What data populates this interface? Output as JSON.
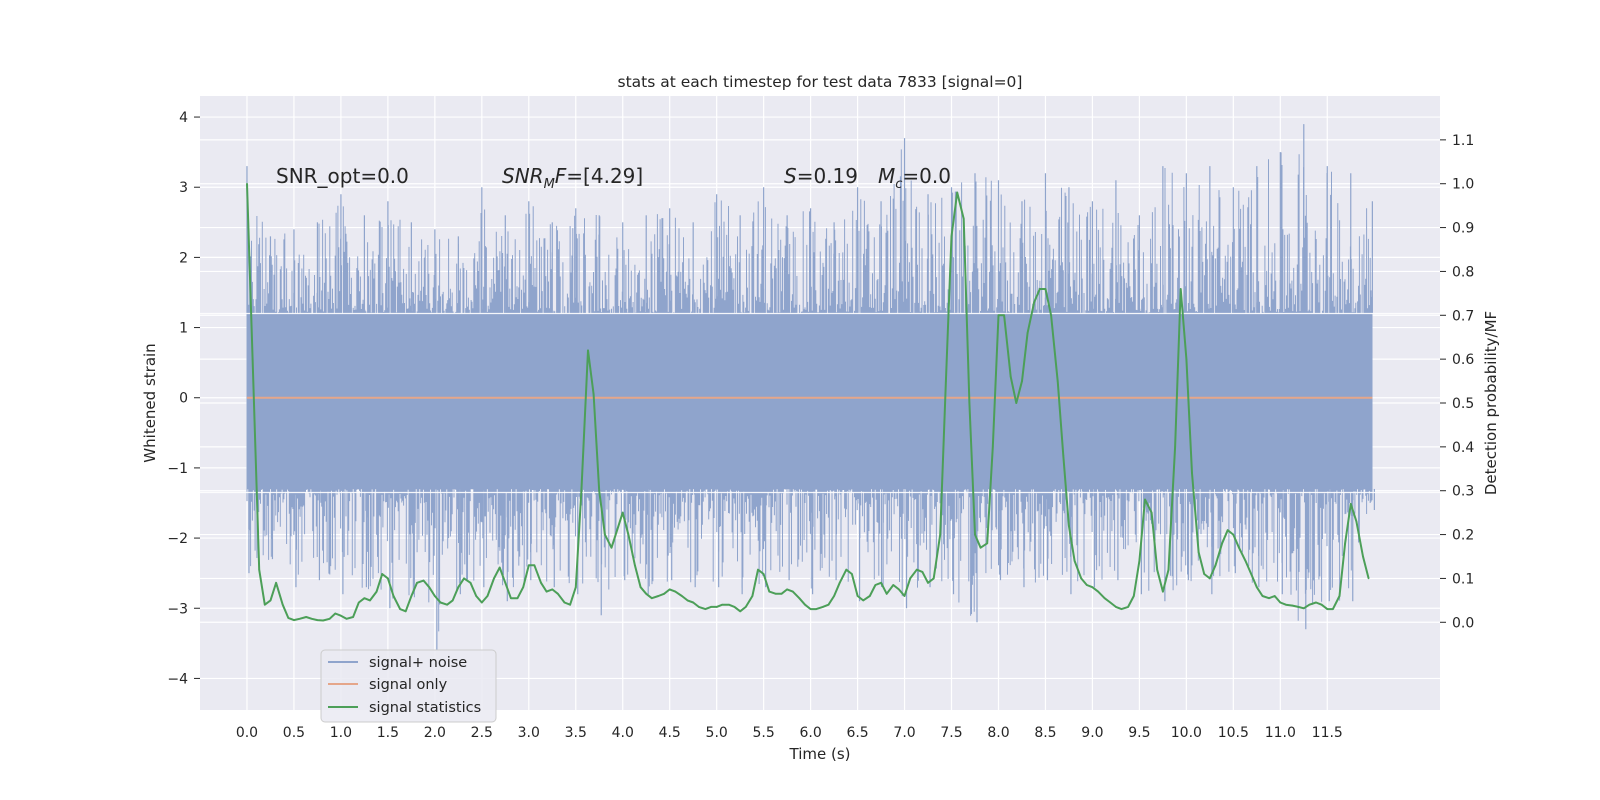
{
  "chart_data": {
    "type": "line",
    "title": "stats at each timestep for test data 7833 [signal=0]",
    "xlabel": "Time (s)",
    "ylabel": "Whitened strain",
    "ylabel_right": "Detection probability/MF",
    "xlim": [
      -0.5,
      12.7
    ],
    "ylim": [
      -4.45,
      4.3
    ],
    "ylim_right": [
      -0.2,
      1.2
    ],
    "x_ticks": [
      0.0,
      0.5,
      1.0,
      1.5,
      2.0,
      2.5,
      3.0,
      3.5,
      4.0,
      4.5,
      5.0,
      5.5,
      6.0,
      6.5,
      7.0,
      7.5,
      8.0,
      8.5,
      9.0,
      9.5,
      10.0,
      10.5,
      11.0,
      11.5
    ],
    "x_tick_labels": [
      "0.0",
      "0.5",
      "1.0",
      "1.5",
      "2.0",
      "2.5",
      "3.0",
      "3.5",
      "4.0",
      "4.5",
      "5.0",
      "5.5",
      "6.0",
      "6.5",
      "7.0",
      "7.5",
      "8.0",
      "8.5",
      "9.0",
      "9.5",
      "10.0",
      "10.5",
      "11.0",
      "11.5"
    ],
    "y_ticks": [
      -4,
      -3,
      -2,
      -1,
      0,
      1,
      2,
      3,
      4
    ],
    "y_tick_labels": [
      "−4",
      "−3",
      "−2",
      "−1",
      "0",
      "1",
      "2",
      "3",
      "4"
    ],
    "y_ticks_right": [
      0.0,
      0.1,
      0.2,
      0.3,
      0.4,
      0.5,
      0.6,
      0.7,
      0.8,
      0.9,
      1.0,
      1.1
    ],
    "y_tick_labels_right": [
      "0.0",
      "0.1",
      "0.2",
      "0.3",
      "0.4",
      "0.5",
      "0.6",
      "0.7",
      "0.8",
      "0.9",
      "1.0",
      "1.1"
    ],
    "grid": true,
    "legend_position": "lower-left",
    "legend": [
      "signal+ noise",
      "signal only",
      "signal statistics"
    ],
    "annotations": {
      "snr_opt": "SNR_opt=0.0",
      "snr_mf_main": "SNR",
      "snr_mf_sub": "M",
      "snr_mf_var": "F",
      "snr_mf_value": "=[4.29]",
      "s_var": "S",
      "s_value": "=0.19",
      "mc_var": "M",
      "mc_sub": "c",
      "mc_value": "=0.0"
    },
    "series": [
      {
        "name": "signal+ noise",
        "axis": "left",
        "color": "#8fa4cc",
        "x_start": 0.0,
        "x_end": 11.98,
        "envelope": {
          "x": [
            0.0,
            0.25,
            0.5,
            0.75,
            1.0,
            1.25,
            1.5,
            1.75,
            2.0,
            2.25,
            2.5,
            2.75,
            3.0,
            3.25,
            3.5,
            3.75,
            4.0,
            4.25,
            4.5,
            4.75,
            5.0,
            5.25,
            5.5,
            5.75,
            6.0,
            6.25,
            6.5,
            6.75,
            7.0,
            7.25,
            7.5,
            7.75,
            8.0,
            8.25,
            8.5,
            8.75,
            9.0,
            9.25,
            9.5,
            9.75,
            10.0,
            10.25,
            10.5,
            10.75,
            11.0,
            11.25,
            11.5,
            11.75,
            11.98
          ],
          "max": [
            3.3,
            2.3,
            2.4,
            2.5,
            2.9,
            2.6,
            2.8,
            2.5,
            2.4,
            2.3,
            3.0,
            2.6,
            2.8,
            2.5,
            2.7,
            2.6,
            2.5,
            2.6,
            2.7,
            2.5,
            2.9,
            2.6,
            3.0,
            2.6,
            2.7,
            2.5,
            3.0,
            2.8,
            3.7,
            2.9,
            3.0,
            3.2,
            3.1,
            2.8,
            3.2,
            3.0,
            2.8,
            3.1,
            2.6,
            3.3,
            3.2,
            3.3,
            3.0,
            3.3,
            3.5,
            3.9,
            3.3,
            3.2,
            2.8
          ],
          "min": [
            -2.5,
            -2.3,
            -2.7,
            -2.6,
            -2.8,
            -2.7,
            -3.0,
            -2.8,
            -3.6,
            -2.8,
            -2.7,
            -2.9,
            -2.6,
            -2.7,
            -2.8,
            -3.1,
            -2.6,
            -2.8,
            -2.6,
            -2.7,
            -2.7,
            -2.8,
            -2.7,
            -2.6,
            -2.8,
            -2.6,
            -2.9,
            -2.7,
            -3.0,
            -2.7,
            -2.8,
            -3.2,
            -2.6,
            -2.7,
            -2.6,
            -2.8,
            -2.7,
            -2.6,
            -2.8,
            -2.9,
            -2.6,
            -2.8,
            -2.5,
            -2.7,
            -2.8,
            -3.3,
            -2.9,
            -2.9,
            -1.6
          ]
        }
      },
      {
        "name": "signal only",
        "axis": "left",
        "color": "#e5a68a",
        "x": [
          0.0,
          11.98
        ],
        "y": [
          0.0,
          0.0
        ]
      },
      {
        "name": "signal statistics",
        "axis": "right",
        "color": "#4c9f58",
        "x": [
          0.0,
          0.06,
          0.13,
          0.19,
          0.25,
          0.31,
          0.38,
          0.44,
          0.5,
          0.56,
          0.63,
          0.69,
          0.75,
          0.81,
          0.88,
          0.94,
          1.0,
          1.06,
          1.13,
          1.19,
          1.25,
          1.31,
          1.38,
          1.44,
          1.5,
          1.56,
          1.63,
          1.69,
          1.75,
          1.81,
          1.88,
          1.94,
          2.0,
          2.06,
          2.13,
          2.19,
          2.25,
          2.31,
          2.38,
          2.44,
          2.5,
          2.56,
          2.63,
          2.69,
          2.75,
          2.81,
          2.88,
          2.94,
          3.0,
          3.06,
          3.13,
          3.19,
          3.25,
          3.31,
          3.38,
          3.44,
          3.5,
          3.56,
          3.63,
          3.69,
          3.75,
          3.81,
          3.88,
          3.94,
          4.0,
          4.06,
          4.13,
          4.19,
          4.25,
          4.31,
          4.38,
          4.44,
          4.5,
          4.56,
          4.63,
          4.69,
          4.75,
          4.81,
          4.88,
          4.94,
          5.0,
          5.06,
          5.13,
          5.19,
          5.25,
          5.31,
          5.38,
          5.44,
          5.5,
          5.56,
          5.63,
          5.69,
          5.75,
          5.81,
          5.88,
          5.94,
          6.0,
          6.06,
          6.13,
          6.19,
          6.25,
          6.31,
          6.38,
          6.44,
          6.5,
          6.56,
          6.63,
          6.69,
          6.75,
          6.81,
          6.88,
          6.94,
          7.0,
          7.06,
          7.13,
          7.19,
          7.25,
          7.31,
          7.38,
          7.44,
          7.5,
          7.56,
          7.63,
          7.69,
          7.75,
          7.81,
          7.88,
          7.94,
          8.0,
          8.06,
          8.13,
          8.19,
          8.25,
          8.31,
          8.38,
          8.44,
          8.5,
          8.56,
          8.63,
          8.69,
          8.75,
          8.81,
          8.88,
          8.94,
          9.0,
          9.06,
          9.13,
          9.19,
          9.25,
          9.31,
          9.38,
          9.44,
          9.5,
          9.56,
          9.63,
          9.69,
          9.75,
          9.81,
          9.88,
          9.94,
          10.0,
          10.06,
          10.13,
          10.19,
          10.25,
          10.31,
          10.38,
          10.44,
          10.5,
          10.56,
          10.63,
          10.69,
          10.75,
          10.81,
          10.88,
          10.94,
          11.0,
          11.06,
          11.13,
          11.19,
          11.25,
          11.31,
          11.38,
          11.44,
          11.5,
          11.56,
          11.63,
          11.69,
          11.75,
          11.81,
          11.88,
          11.94
        ],
        "y": [
          1.0,
          0.6,
          0.12,
          0.04,
          0.05,
          0.09,
          0.04,
          0.01,
          0.005,
          0.008,
          0.012,
          0.008,
          0.005,
          0.004,
          0.008,
          0.02,
          0.015,
          0.008,
          0.012,
          0.045,
          0.055,
          0.05,
          0.07,
          0.11,
          0.1,
          0.06,
          0.03,
          0.025,
          0.06,
          0.09,
          0.095,
          0.08,
          0.06,
          0.045,
          0.04,
          0.05,
          0.08,
          0.1,
          0.09,
          0.06,
          0.045,
          0.06,
          0.1,
          0.125,
          0.09,
          0.055,
          0.055,
          0.08,
          0.13,
          0.13,
          0.09,
          0.07,
          0.075,
          0.065,
          0.045,
          0.04,
          0.08,
          0.3,
          0.62,
          0.52,
          0.3,
          0.2,
          0.17,
          0.21,
          0.25,
          0.2,
          0.13,
          0.08,
          0.065,
          0.055,
          0.06,
          0.065,
          0.075,
          0.07,
          0.06,
          0.05,
          0.045,
          0.035,
          0.03,
          0.035,
          0.035,
          0.04,
          0.04,
          0.035,
          0.025,
          0.035,
          0.06,
          0.12,
          0.11,
          0.07,
          0.065,
          0.065,
          0.075,
          0.07,
          0.055,
          0.04,
          0.03,
          0.03,
          0.035,
          0.04,
          0.06,
          0.09,
          0.12,
          0.11,
          0.06,
          0.05,
          0.06,
          0.085,
          0.09,
          0.065,
          0.085,
          0.075,
          0.06,
          0.1,
          0.12,
          0.115,
          0.09,
          0.1,
          0.2,
          0.55,
          0.88,
          0.98,
          0.92,
          0.5,
          0.2,
          0.17,
          0.18,
          0.4,
          0.7,
          0.7,
          0.56,
          0.5,
          0.55,
          0.66,
          0.73,
          0.76,
          0.76,
          0.7,
          0.55,
          0.38,
          0.22,
          0.14,
          0.1,
          0.085,
          0.08,
          0.07,
          0.055,
          0.045,
          0.035,
          0.03,
          0.035,
          0.06,
          0.14,
          0.28,
          0.25,
          0.12,
          0.07,
          0.12,
          0.4,
          0.76,
          0.6,
          0.34,
          0.16,
          0.11,
          0.1,
          0.13,
          0.18,
          0.21,
          0.2,
          0.17,
          0.14,
          0.11,
          0.08,
          0.06,
          0.055,
          0.06,
          0.045,
          0.04,
          0.038,
          0.035,
          0.032,
          0.04,
          0.045,
          0.04,
          0.03,
          0.03,
          0.06,
          0.18,
          0.27,
          0.23,
          0.15,
          0.1
        ]
      }
    ]
  }
}
